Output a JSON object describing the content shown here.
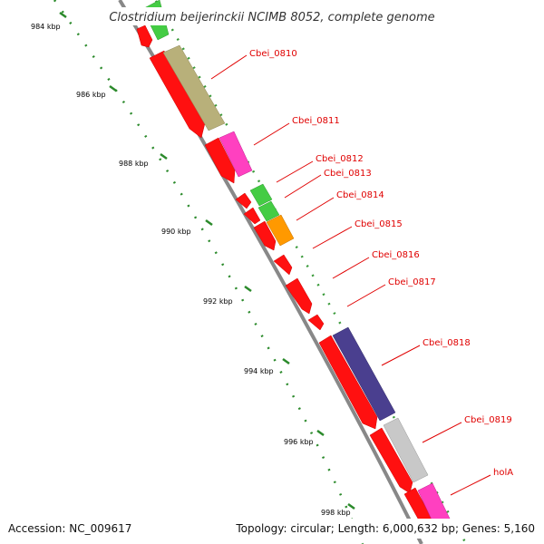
{
  "title": "Clostridium beijerinckii NCIMB 8052, complete genome",
  "footer": {
    "accession": "Accession: NC_009617",
    "summary": "Topology: circular; Length: 6,000,632 bp; Genes: 5,160"
  },
  "ruler_ticks": [
    "984 kbp",
    "986 kbp",
    "988 kbp",
    "990 kbp",
    "992 kbp",
    "994 kbp",
    "996 kbp",
    "998 kbp"
  ],
  "gene_labels": [
    "Cbei_0810",
    "Cbei_0811",
    "Cbei_0812",
    "Cbei_0813",
    "Cbei_0814",
    "Cbei_0815",
    "Cbei_0816",
    "Cbei_0817",
    "Cbei_0818",
    "Cbei_0819",
    "holA"
  ],
  "colors": {
    "cds": "#ff1010",
    "backbone": "#888888",
    "tick": "#3a9a3a",
    "label": "#e00000",
    "olive": "#b8b07a",
    "magenta": "#ff40c0",
    "green": "#44cc44",
    "orange": "#ff9900",
    "purple": "#4a3f8f",
    "gray": "#c8c8c8"
  }
}
